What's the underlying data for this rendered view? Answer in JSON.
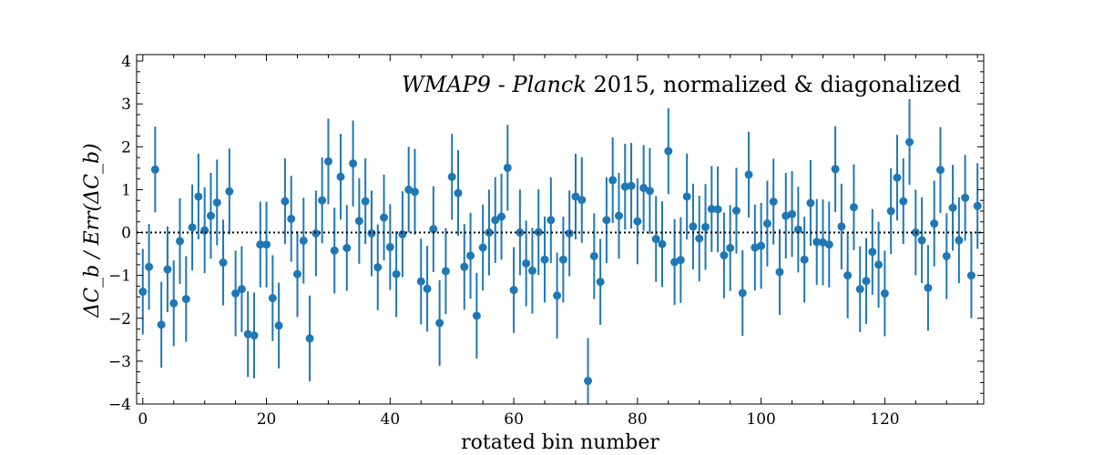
{
  "chart_data": {
    "type": "scatter",
    "annotation": {
      "part1": "WMAP9",
      "part2": " - ",
      "part3": "Planck",
      "part4": " 2015, normalized & diagonalized"
    },
    "xlabel": "rotated bin number",
    "ylabel": "ΔC_b / Err(ΔC_b)",
    "xlim": [
      -1,
      136
    ],
    "ylim": [
      -4,
      4.15
    ],
    "xticks": [
      0,
      20,
      40,
      60,
      80,
      100,
      120
    ],
    "yticks": [
      -4,
      -3,
      -2,
      -1,
      0,
      1,
      2,
      3,
      4
    ],
    "ytick_labels": [
      "−4",
      "−3",
      "−2",
      "−1",
      "0",
      "1",
      "2",
      "3",
      "4"
    ],
    "reference_line": {
      "y": 0,
      "style": "dotted",
      "color": "#000000"
    },
    "grid": false,
    "color": "#1f77b4",
    "error": 1.0,
    "series": [
      {
        "x": [
          0,
          1,
          2,
          3,
          4,
          5,
          6,
          7,
          8,
          9,
          10,
          11,
          12,
          13,
          14,
          15,
          16,
          17,
          18,
          19,
          20,
          21,
          22,
          23,
          24,
          25,
          26,
          27,
          28,
          29,
          30,
          31,
          32,
          33,
          34,
          35,
          36,
          37,
          38,
          39,
          40,
          41,
          42,
          43,
          44,
          45,
          46,
          47,
          48,
          49,
          50,
          51,
          52,
          53,
          54,
          55,
          56,
          57,
          58,
          59,
          60,
          61,
          62,
          63,
          64,
          65,
          66,
          67,
          68,
          69,
          70,
          71,
          72,
          73,
          74,
          75,
          76,
          77,
          78,
          79,
          80,
          81,
          82,
          83,
          84,
          85,
          86,
          87,
          88,
          89,
          90,
          91,
          92,
          93,
          94,
          95,
          96,
          97,
          98,
          99,
          100,
          101,
          102,
          103,
          104,
          105,
          106,
          107,
          108,
          109,
          110,
          111,
          112,
          113,
          114,
          115,
          116,
          117,
          118,
          119,
          120,
          121,
          122,
          123,
          124,
          125,
          126,
          127,
          128,
          129,
          130,
          131,
          132,
          133,
          134,
          135
        ],
        "y": [
          -1.38,
          -0.8,
          1.47,
          -2.15,
          -0.86,
          -1.65,
          -0.2,
          -1.55,
          0.12,
          0.84,
          0.05,
          0.39,
          0.7,
          -0.7,
          0.96,
          -1.42,
          -1.32,
          -2.37,
          -2.4,
          -0.28,
          -0.28,
          -1.53,
          -2.17,
          0.73,
          0.32,
          -0.97,
          -0.19,
          -2.47,
          -0.02,
          0.75,
          1.66,
          -0.42,
          1.3,
          -0.36,
          1.61,
          0.27,
          0.73,
          -0.02,
          -0.81,
          0.35,
          -0.34,
          -0.97,
          -0.04,
          1.0,
          0.95,
          -1.14,
          -1.31,
          0.08,
          -2.11,
          -0.9,
          1.3,
          0.92,
          -0.8,
          -0.54,
          -1.94,
          -0.35,
          0.0,
          0.29,
          0.37,
          1.51,
          -1.34,
          0.0,
          -0.72,
          -0.89,
          0.01,
          -0.63,
          0.29,
          -1.47,
          -0.63,
          -0.02,
          0.84,
          0.76,
          -3.46,
          -0.55,
          -1.15,
          0.29,
          1.22,
          0.39,
          1.07,
          1.09,
          0.26,
          1.04,
          0.97,
          -0.15,
          -0.27,
          1.9,
          -0.69,
          -0.64,
          0.84,
          0.14,
          -0.14,
          0.13,
          0.55,
          0.54,
          -0.53,
          -0.36,
          0.51,
          -1.41,
          1.35,
          -0.35,
          -0.31,
          0.21,
          0.72,
          -0.92,
          0.39,
          0.43,
          0.07,
          -0.63,
          0.69,
          -0.22,
          -0.23,
          -0.28,
          1.48,
          0.14,
          -1.0,
          0.59,
          -1.32,
          -1.13,
          -0.45,
          -0.75,
          -1.42,
          0.5,
          1.28,
          0.73,
          2.11,
          0.0,
          -0.18,
          -1.29,
          0.21,
          1.46,
          -0.55,
          0.58,
          -0.18,
          0.81,
          -1.0,
          0.62
        ]
      }
    ]
  }
}
